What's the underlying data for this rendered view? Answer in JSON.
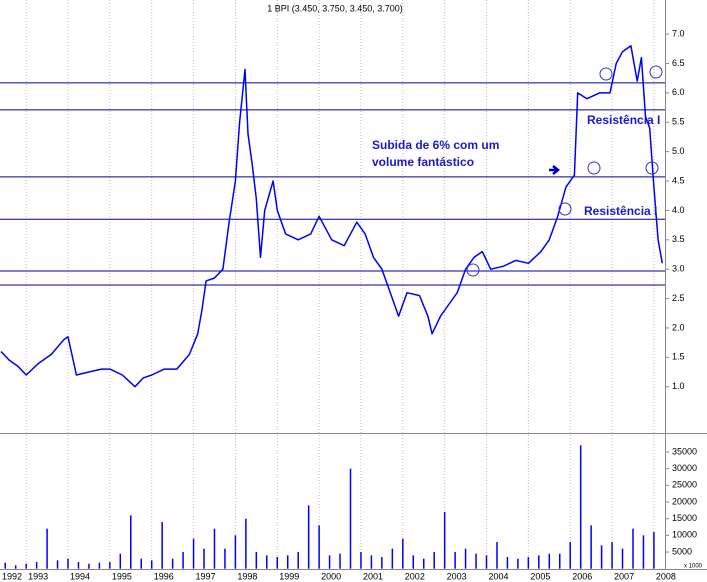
{
  "chart_data": [
    {
      "type": "line",
      "title": "1 BPI (3.450, 3.750, 3.450, 3.700)",
      "color": "#0000ff",
      "x": [
        1992.4,
        1992.6,
        1992.8,
        1993.0,
        1993.3,
        1993.6,
        1993.9,
        1994.0,
        1994.2,
        1994.5,
        1994.8,
        1995.0,
        1995.3,
        1995.6,
        1995.8,
        1996.0,
        1996.3,
        1996.6,
        1996.9,
        1997.1,
        1997.2,
        1997.3,
        1997.5,
        1997.7,
        1997.85,
        1998.0,
        1998.1,
        1998.23,
        1998.3,
        1998.4,
        1998.5,
        1998.6,
        1998.7,
        1998.9,
        1999.0,
        1999.2,
        1999.5,
        1999.8,
        2000.0,
        2000.3,
        2000.6,
        2000.9,
        2001.1,
        2001.3,
        2001.5,
        2001.7,
        2001.9,
        2002.1,
        2002.4,
        2002.6,
        2002.7,
        2002.9,
        2003.1,
        2003.3,
        2003.5,
        2003.7,
        2003.9,
        2004.1,
        2004.4,
        2004.7,
        2005.0,
        2005.3,
        2005.5,
        2005.7,
        2005.9,
        2006.1,
        2006.18,
        2006.4,
        2006.7,
        2006.95,
        2007.1,
        2007.25,
        2007.45,
        2007.6,
        2007.7,
        2007.8,
        2007.9,
        2008.0,
        2008.1,
        2008.2
      ],
      "values": [
        1.6,
        1.45,
        1.35,
        1.2,
        1.4,
        1.55,
        1.8,
        1.85,
        1.2,
        1.25,
        1.3,
        1.3,
        1.2,
        1.0,
        1.15,
        1.2,
        1.3,
        1.3,
        1.55,
        1.9,
        2.3,
        2.8,
        2.85,
        3.0,
        3.8,
        4.5,
        5.5,
        6.4,
        5.3,
        4.8,
        4.2,
        3.2,
        4.0,
        4.5,
        4.0,
        3.6,
        3.5,
        3.6,
        3.9,
        3.5,
        3.4,
        3.8,
        3.6,
        3.2,
        3.0,
        2.6,
        2.2,
        2.6,
        2.55,
        2.2,
        1.9,
        2.2,
        2.4,
        2.6,
        3.0,
        3.2,
        3.3,
        3.0,
        3.05,
        3.15,
        3.1,
        3.3,
        3.5,
        3.9,
        4.4,
        4.6,
        6.0,
        5.9,
        6.0,
        6.0,
        6.5,
        6.7,
        6.8,
        6.2,
        6.6,
        5.6,
        5.4,
        4.4,
        3.5,
        3.1
      ],
      "xlim": [
        1992.375,
        2008.265
      ],
      "ylim": [
        0.23,
        7.58
      ],
      "yticks": [
        {
          "value": 1,
          "label": "1.0"
        },
        1.5,
        {
          "value": 2,
          "label": "2.0"
        },
        2.5,
        {
          "value": 3,
          "label": "3.0"
        },
        3.5,
        {
          "value": 4,
          "label": "4.0"
        },
        4.5,
        {
          "value": 5,
          "label": "5.0"
        },
        5.5,
        {
          "value": 6,
          "label": "6.0"
        },
        6.5,
        {
          "value": 7,
          "label": "7.0"
        }
      ],
      "hlines": [
        6.17,
        5.71,
        4.57,
        3.85,
        2.97,
        2.73
      ],
      "hline_color": "#000099",
      "annotations": [
        "Subida de 6%  com um",
        "volume fantástico",
        "Resistência I",
        "Resistência I"
      ]
    },
    {
      "type": "bar",
      "color": "#0000ff",
      "y_label": "x 1000",
      "x": [
        1992.5,
        1992.75,
        1993.0,
        1993.25,
        1993.5,
        1993.75,
        1994.0,
        1994.25,
        1994.5,
        1994.75,
        1995.0,
        1995.25,
        1995.5,
        1995.75,
        1996.0,
        1996.25,
        1996.5,
        1996.75,
        1997.0,
        1997.25,
        1997.5,
        1997.75,
        1998.0,
        1998.25,
        1998.5,
        1998.75,
        1999.0,
        1999.25,
        1999.5,
        1999.75,
        2000.0,
        2000.25,
        2000.5,
        2000.75,
        2001.0,
        2001.25,
        2001.5,
        2001.75,
        2002.0,
        2002.25,
        2002.5,
        2002.75,
        2003.0,
        2003.25,
        2003.5,
        2003.75,
        2004.0,
        2004.25,
        2004.5,
        2004.75,
        2005.0,
        2005.25,
        2005.5,
        2005.75,
        2006.0,
        2006.25,
        2006.5,
        2006.75,
        2007.0,
        2007.25,
        2007.5,
        2007.75,
        2008.0
      ],
      "values": [
        1800,
        1000,
        1500,
        2000,
        12000,
        2500,
        3000,
        2000,
        1500,
        1800,
        2000,
        4500,
        16000,
        3000,
        2500,
        14000,
        3000,
        5000,
        9000,
        6000,
        12000,
        6000,
        10000,
        15000,
        5000,
        4000,
        3500,
        4000,
        5000,
        19000,
        13000,
        4000,
        4500,
        30000,
        5000,
        4000,
        3500,
        6000,
        9000,
        4000,
        3000,
        5000,
        17000,
        5000,
        6000,
        4500,
        4000,
        8000,
        3500,
        3000,
        3500,
        4000,
        4500,
        4500,
        8000,
        37000,
        13000,
        7000,
        8000,
        6000,
        12000,
        10000,
        11000
      ],
      "xlim": [
        1992.375,
        2008.265
      ],
      "ylim": [
        0,
        39800
      ],
      "yticks": [
        5000,
        10000,
        15000,
        20000,
        25000,
        30000,
        35000
      ],
      "xticks": [
        1992,
        1993,
        1994,
        1995,
        1996,
        1997,
        1998,
        1999,
        2000,
        2001,
        2002,
        2003,
        2004,
        2005,
        2006,
        2007,
        2008
      ]
    }
  ]
}
